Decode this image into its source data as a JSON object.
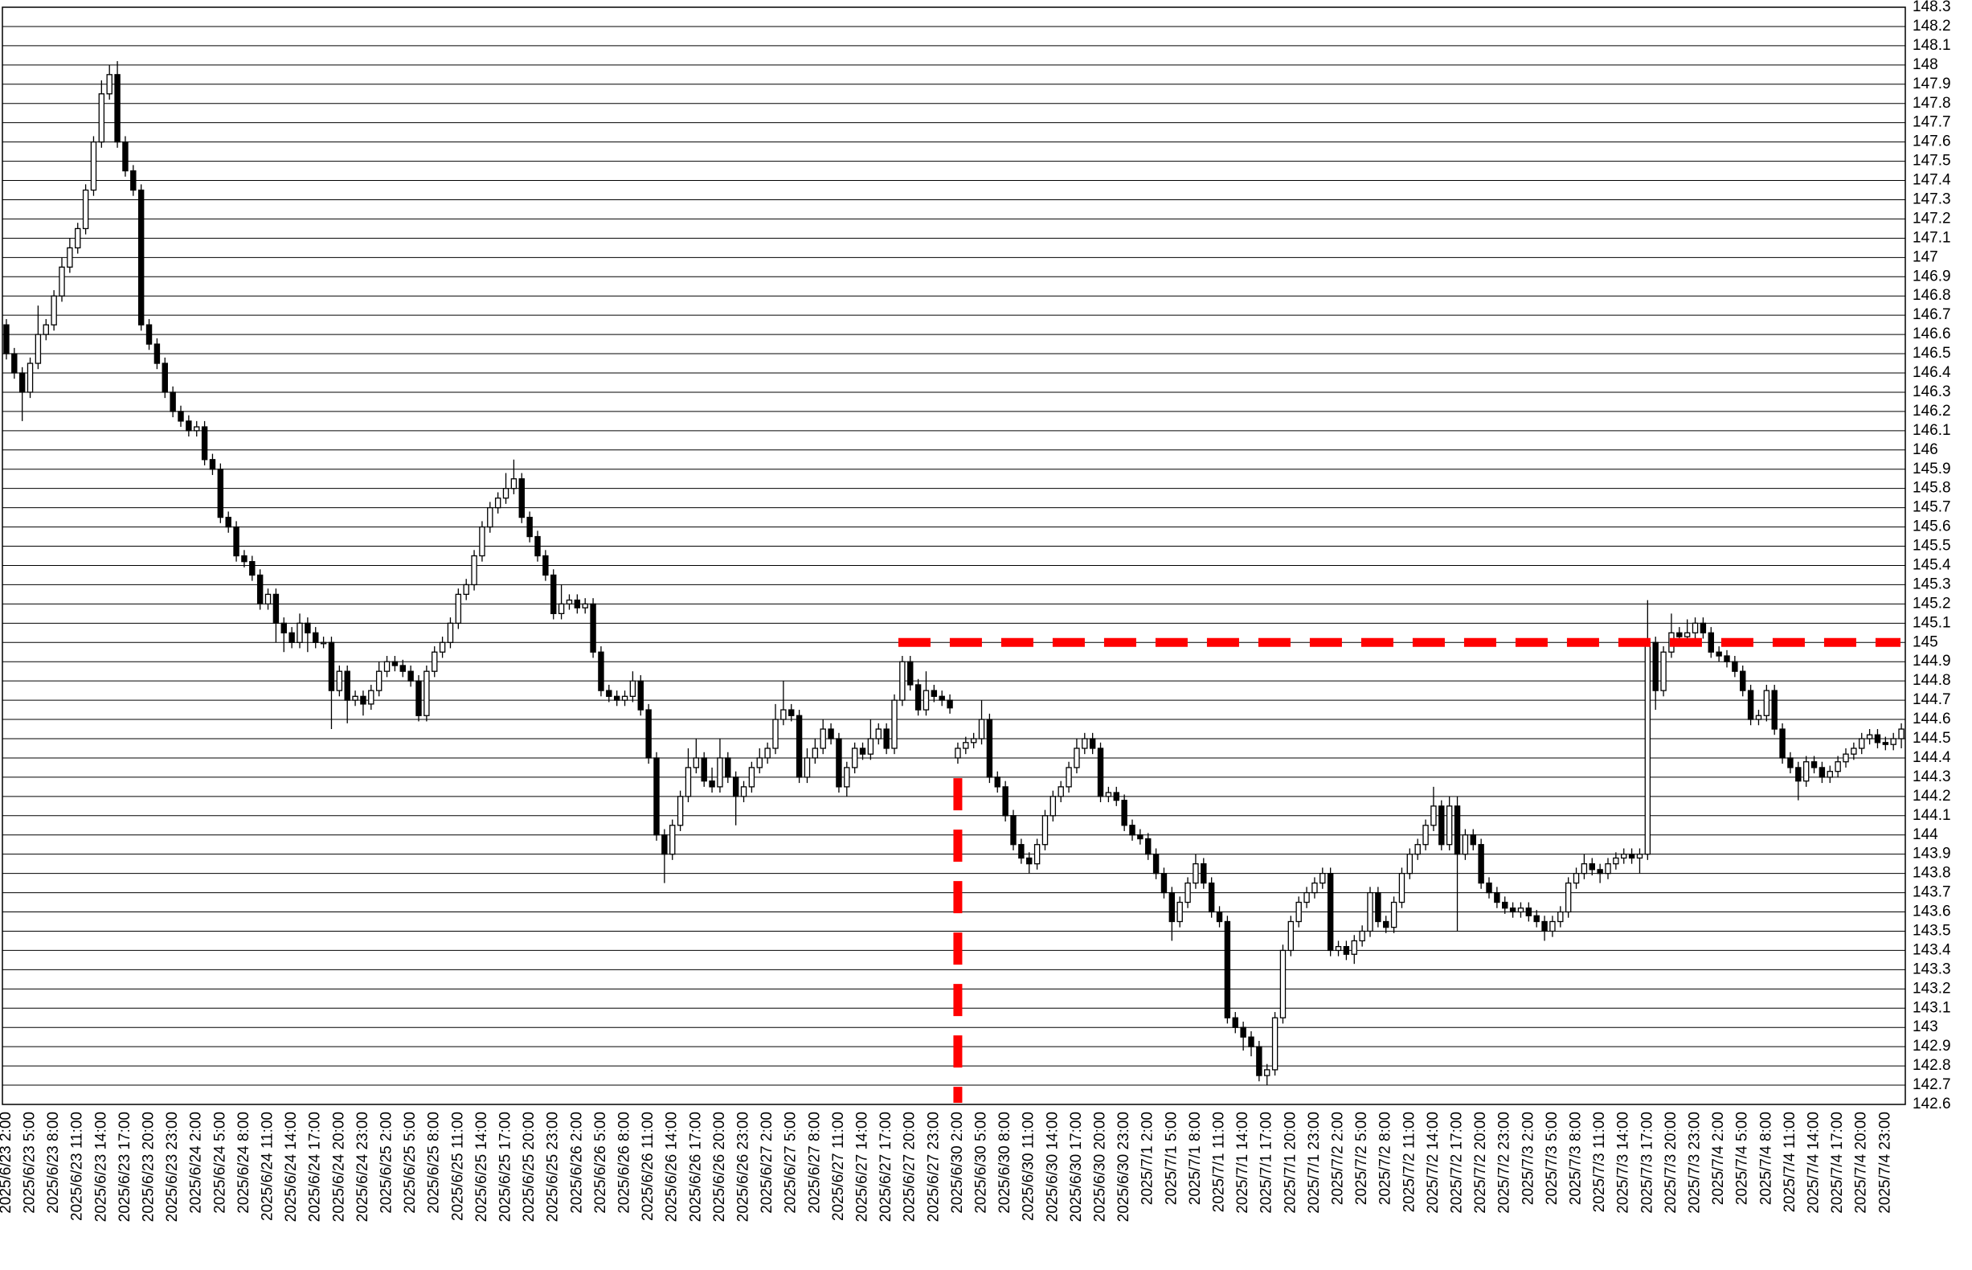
{
  "chart_data": {
    "type": "candlestick",
    "up_color": "#ffffff",
    "down_color": "#000000",
    "edge_color": "#000000",
    "grid": true,
    "ylim": [
      142.6,
      148.3
    ],
    "yticks": [
      142.6,
      142.7,
      142.8,
      142.9,
      143,
      143.1,
      143.2,
      143.3,
      143.4,
      143.5,
      143.6,
      143.7,
      143.8,
      143.9,
      144,
      144.1,
      144.2,
      144.3,
      144.4,
      144.5,
      144.6,
      144.7,
      144.8,
      144.9,
      145,
      145.1,
      145.2,
      145.3,
      145.4,
      145.5,
      145.6,
      145.7,
      145.8,
      145.9,
      146,
      146.1,
      146.2,
      146.3,
      146.4,
      146.5,
      146.6,
      146.7,
      146.8,
      146.9,
      147,
      147.1,
      147.2,
      147.3,
      147.4,
      147.5,
      147.6,
      147.7,
      147.8,
      147.9,
      148,
      148.1,
      148.2,
      148.3
    ],
    "categories": [
      "2025/6/23 2:00",
      null,
      null,
      "2025/6/23 5:00",
      null,
      null,
      "2025/6/23 8:00",
      null,
      null,
      "2025/6/23 11:00",
      null,
      null,
      "2025/6/23 14:00",
      null,
      null,
      "2025/6/23 17:00",
      null,
      null,
      "2025/6/23 20:00",
      null,
      null,
      "2025/6/23 23:00",
      null,
      null,
      "2025/6/24 2:00",
      null,
      null,
      "2025/6/24 5:00",
      null,
      null,
      "2025/6/24 8:00",
      null,
      null,
      "2025/6/24 11:00",
      null,
      null,
      "2025/6/24 14:00",
      null,
      null,
      "2025/6/24 17:00",
      null,
      null,
      "2025/6/24 20:00",
      null,
      null,
      "2025/6/24 23:00",
      null,
      null,
      "2025/6/25 2:00",
      null,
      null,
      "2025/6/25 5:00",
      null,
      null,
      "2025/6/25 8:00",
      null,
      null,
      "2025/6/25 11:00",
      null,
      null,
      "2025/6/25 14:00",
      null,
      null,
      "2025/6/25 17:00",
      null,
      null,
      "2025/6/25 20:00",
      null,
      null,
      "2025/6/25 23:00",
      null,
      null,
      "2025/6/26 2:00",
      null,
      null,
      "2025/6/26 5:00",
      null,
      null,
      "2025/6/26 8:00",
      null,
      null,
      "2025/6/26 11:00",
      null,
      null,
      "2025/6/26 14:00",
      null,
      null,
      "2025/6/26 17:00",
      null,
      null,
      "2025/6/26 20:00",
      null,
      null,
      "2025/6/26 23:00",
      null,
      null,
      "2025/6/27 2:00",
      null,
      null,
      "2025/6/27 5:00",
      null,
      null,
      "2025/6/27 8:00",
      null,
      null,
      "2025/6/27 11:00",
      null,
      null,
      "2025/6/27 14:00",
      null,
      null,
      "2025/6/27 17:00",
      null,
      null,
      "2025/6/27 20:00",
      null,
      null,
      "2025/6/27 23:00",
      null,
      null,
      "2025/6/30 2:00",
      null,
      null,
      "2025/6/30 5:00",
      null,
      null,
      "2025/6/30 8:00",
      null,
      null,
      "2025/6/30 11:00",
      null,
      null,
      "2025/6/30 14:00",
      null,
      null,
      "2025/6/30 17:00",
      null,
      null,
      "2025/6/30 20:00",
      null,
      null,
      "2025/6/30 23:00",
      null,
      null,
      "2025/7/1 2:00",
      null,
      null,
      "2025/7/1 5:00",
      null,
      null,
      "2025/7/1 8:00",
      null,
      null,
      "2025/7/1 11:00",
      null,
      null,
      "2025/7/1 14:00",
      null,
      null,
      "2025/7/1 17:00",
      null,
      null,
      "2025/7/1 20:00",
      null,
      null,
      "2025/7/1 23:00",
      null,
      null,
      "2025/7/2 2:00",
      null,
      null,
      "2025/7/2 5:00",
      null,
      null,
      "2025/7/2 8:00",
      null,
      null,
      "2025/7/2 11:00",
      null,
      null,
      "2025/7/2 14:00",
      null,
      null,
      "2025/7/2 17:00",
      null,
      null,
      "2025/7/2 20:00",
      null,
      null,
      "2025/7/2 23:00",
      null,
      null,
      "2025/7/3 2:00",
      null,
      null,
      "2025/7/3 5:00",
      null,
      null,
      "2025/7/3 8:00",
      null,
      null,
      "2025/7/3 11:00",
      null,
      null,
      "2025/7/3 14:00",
      null,
      null,
      "2025/7/3 17:00",
      null,
      null,
      "2025/7/3 20:00",
      null,
      null,
      "2025/7/3 23:00",
      null,
      null,
      "2025/7/4 2:00",
      null,
      null,
      "2025/7/4 5:00",
      null,
      null,
      "2025/7/4 8:00",
      null,
      null,
      "2025/7/4 11:00",
      null,
      null,
      "2025/7/4 14:00",
      null,
      null,
      "2025/7/4 17:00",
      null,
      null,
      "2025/7/4 20:00",
      null,
      null,
      "2025/7/4 23:00",
      null,
      null
    ],
    "open": [
      146.65,
      146.5,
      146.4,
      146.3,
      146.45,
      146.6,
      146.65,
      146.8,
      146.95,
      147.05,
      147.15,
      147.35,
      147.6,
      147.85,
      147.95,
      147.6,
      147.45,
      147.35,
      146.65,
      146.55,
      146.45,
      146.3,
      146.2,
      146.15,
      146.1,
      146.12,
      145.95,
      145.9,
      145.65,
      145.6,
      145.45,
      145.42,
      145.35,
      145.2,
      145.25,
      145.1,
      145.05,
      145,
      145.1,
      145.05,
      145,
      145,
      144.75,
      144.85,
      144.7,
      144.72,
      144.68,
      144.75,
      144.85,
      144.9,
      144.88,
      144.85,
      144.8,
      144.62,
      144.85,
      144.95,
      145,
      145.1,
      145.25,
      145.3,
      145.45,
      145.6,
      145.7,
      145.75,
      145.8,
      145.85,
      145.65,
      145.55,
      145.45,
      145.35,
      145.15,
      145.2,
      145.22,
      145.18,
      145.2,
      144.95,
      144.75,
      144.72,
      144.7,
      144.72,
      144.8,
      144.65,
      144.4,
      144,
      143.9,
      144.05,
      144.2,
      144.35,
      144.4,
      144.28,
      144.25,
      144.4,
      144.3,
      144.2,
      144.25,
      144.35,
      144.4,
      144.45,
      144.6,
      144.65,
      144.62,
      144.3,
      144.4,
      144.45,
      144.55,
      144.5,
      144.25,
      144.35,
      144.45,
      144.42,
      144.5,
      144.55,
      144.45,
      144.7,
      144.9,
      144.78,
      144.65,
      144.75,
      144.72,
      144.7,
      144.4,
      144.45,
      144.48,
      144.5,
      144.6,
      144.3,
      144.25,
      144.1,
      143.95,
      143.88,
      143.85,
      143.95,
      144.1,
      144.2,
      144.25,
      144.35,
      144.45,
      144.5,
      144.45,
      144.2,
      144.22,
      144.18,
      144.05,
      144,
      143.98,
      143.9,
      143.8,
      143.7,
      143.55,
      143.65,
      143.75,
      143.85,
      143.75,
      143.6,
      143.55,
      143.05,
      143,
      142.95,
      142.9,
      142.75,
      142.78,
      143.05,
      143.4,
      143.55,
      143.65,
      143.7,
      143.75,
      143.8,
      143.4,
      143.42,
      143.38,
      143.45,
      143.5,
      143.7,
      143.55,
      143.52,
      143.65,
      143.8,
      143.9,
      143.95,
      144.05,
      144.15,
      143.95,
      144.15,
      143.9,
      144,
      143.95,
      143.75,
      143.7,
      143.65,
      143.62,
      143.6,
      143.62,
      143.58,
      143.55,
      143.5,
      143.55,
      143.6,
      143.75,
      143.8,
      143.85,
      143.82,
      143.8,
      143.85,
      143.88,
      143.9,
      143.88,
      143.9,
      145,
      144.75,
      144.95,
      145.05,
      145.03,
      145.05,
      145.1,
      145.05,
      144.95,
      144.93,
      144.9,
      144.85,
      144.75,
      144.6,
      144.62,
      144.75,
      144.55,
      144.4,
      144.35,
      144.28,
      144.38,
      144.35,
      144.3,
      144.33,
      144.38,
      144.42,
      144.45,
      144.5,
      144.52,
      144.48,
      144.47,
      144.5
    ],
    "high": [
      146.68,
      146.53,
      146.43,
      146.48,
      146.75,
      146.68,
      146.83,
      147,
      147.1,
      147.18,
      147.38,
      147.63,
      147.92,
      148,
      148.02,
      147.63,
      147.48,
      147.38,
      146.68,
      146.58,
      146.48,
      146.33,
      146.23,
      146.18,
      146.15,
      146.15,
      145.98,
      145.93,
      145.68,
      145.63,
      145.48,
      145.45,
      145.38,
      145.28,
      145.28,
      145.13,
      145.08,
      145.15,
      145.13,
      145.08,
      145.03,
      145.03,
      144.88,
      144.88,
      144.75,
      144.75,
      144.78,
      144.9,
      144.93,
      144.93,
      144.91,
      144.88,
      144.83,
      144.88,
      144.98,
      145.03,
      145.13,
      145.28,
      145.33,
      145.48,
      145.63,
      145.73,
      145.78,
      145.88,
      145.95,
      145.88,
      145.68,
      145.58,
      145.48,
      145.38,
      145.3,
      145.25,
      145.25,
      145.23,
      145.23,
      144.98,
      144.78,
      144.75,
      144.75,
      144.85,
      144.83,
      144.68,
      144.43,
      144.03,
      144.08,
      144.23,
      144.45,
      144.5,
      144.43,
      144.35,
      144.5,
      144.43,
      144.33,
      144.28,
      144.38,
      144.45,
      144.48,
      144.68,
      144.8,
      144.68,
      144.65,
      144.45,
      144.5,
      144.6,
      144.58,
      144.53,
      144.38,
      144.48,
      144.48,
      144.6,
      144.58,
      144.58,
      144.73,
      144.93,
      144.93,
      144.81,
      144.85,
      144.78,
      144.75,
      144.73,
      144.48,
      144.51,
      144.53,
      144.7,
      144.63,
      144.33,
      144.28,
      144.13,
      143.98,
      143.91,
      143.98,
      144.13,
      144.23,
      144.28,
      144.38,
      144.5,
      144.53,
      144.53,
      144.48,
      144.25,
      144.25,
      144.21,
      144.08,
      144.03,
      144.01,
      143.93,
      143.83,
      143.73,
      143.68,
      143.78,
      143.9,
      143.88,
      143.78,
      143.63,
      143.58,
      143.08,
      143.03,
      142.98,
      142.93,
      142.81,
      143.08,
      143.43,
      143.58,
      143.68,
      143.73,
      143.78,
      143.83,
      143.83,
      143.45,
      143.45,
      143.48,
      143.53,
      143.73,
      143.73,
      143.58,
      143.68,
      143.83,
      143.93,
      143.98,
      144.08,
      144.25,
      144.18,
      144.2,
      144.2,
      144.03,
      144.03,
      143.98,
      143.78,
      143.73,
      143.68,
      143.65,
      143.65,
      143.65,
      143.61,
      143.58,
      143.58,
      143.63,
      143.78,
      143.83,
      143.9,
      143.88,
      143.85,
      143.88,
      143.91,
      143.93,
      143.93,
      143.93,
      145.22,
      145.03,
      144.98,
      145.15,
      145.08,
      145.12,
      145.13,
      145.13,
      145.08,
      144.98,
      144.96,
      144.93,
      144.88,
      144.78,
      144.65,
      144.78,
      144.78,
      144.58,
      144.43,
      144.38,
      144.41,
      144.41,
      144.38,
      144.36,
      144.41,
      144.45,
      144.48,
      144.53,
      144.55,
      144.55,
      144.51,
      144.53,
      144.58
    ],
    "low": [
      146.47,
      146.37,
      146.15,
      146.27,
      146.42,
      146.57,
      146.62,
      146.77,
      146.92,
      147.02,
      147.12,
      147.32,
      147.57,
      147.82,
      147.57,
      147.42,
      147.32,
      146.62,
      146.52,
      146.42,
      146.27,
      146.17,
      146.12,
      146.07,
      146.07,
      145.92,
      145.87,
      145.62,
      145.57,
      145.42,
      145.39,
      145.32,
      145.17,
      145.17,
      145,
      144.95,
      144.97,
      144.97,
      144.95,
      144.97,
      144.97,
      144.55,
      144.72,
      144.58,
      144.67,
      144.62,
      144.65,
      144.72,
      144.82,
      144.85,
      144.82,
      144.77,
      144.59,
      144.59,
      144.82,
      144.92,
      144.97,
      145.07,
      145.22,
      145.27,
      145.42,
      145.57,
      145.67,
      145.72,
      145.77,
      145.62,
      145.52,
      145.42,
      145.32,
      145.12,
      145.12,
      145.17,
      145.15,
      145.15,
      144.92,
      144.72,
      144.69,
      144.67,
      144.67,
      144.69,
      144.62,
      144.37,
      143.97,
      143.75,
      143.87,
      144.02,
      144.17,
      144.32,
      144.25,
      144.22,
      144.22,
      144.27,
      144.05,
      144.17,
      144.22,
      144.32,
      144.37,
      144.42,
      144.57,
      144.59,
      144.27,
      144.27,
      144.37,
      144.42,
      144.47,
      144.22,
      144.2,
      144.32,
      144.39,
      144.39,
      144.47,
      144.42,
      144.42,
      144.67,
      144.75,
      144.62,
      144.62,
      144.69,
      144.67,
      144.63,
      144.37,
      144.42,
      144.45,
      144.47,
      144.27,
      144.22,
      144.07,
      143.92,
      143.85,
      143.8,
      143.82,
      143.92,
      144.07,
      144.17,
      144.22,
      144.32,
      144.42,
      144.42,
      144.17,
      144.17,
      144.15,
      144.02,
      143.97,
      143.95,
      143.87,
      143.77,
      143.67,
      143.45,
      143.52,
      143.62,
      143.72,
      143.72,
      143.57,
      143.52,
      143.02,
      142.97,
      142.88,
      142.85,
      142.72,
      142.7,
      142.75,
      143.02,
      143.37,
      143.52,
      143.62,
      143.67,
      143.72,
      143.37,
      143.37,
      143.35,
      143.33,
      143.42,
      143.47,
      143.52,
      143.49,
      143.49,
      143.62,
      143.77,
      143.87,
      143.92,
      144.02,
      143.92,
      143.92,
      143.5,
      143.87,
      143.92,
      143.72,
      143.67,
      143.62,
      143.59,
      143.57,
      143.57,
      143.55,
      143.52,
      143.45,
      143.47,
      143.52,
      143.57,
      143.72,
      143.77,
      143.79,
      143.75,
      143.77,
      143.82,
      143.85,
      143.85,
      143.8,
      143.87,
      144.65,
      144.72,
      144.92,
      145,
      145,
      145.02,
      145.02,
      144.92,
      144.9,
      144.87,
      144.82,
      144.72,
      144.57,
      144.57,
      144.59,
      144.52,
      144.37,
      144.32,
      144.18,
      144.25,
      144.32,
      144.27,
      144.27,
      144.3,
      144.35,
      144.39,
      144.42,
      144.47,
      144.45,
      144.44,
      144.44,
      144.45
    ],
    "close": [
      146.5,
      146.4,
      146.3,
      146.45,
      146.6,
      146.65,
      146.8,
      146.95,
      147.05,
      147.15,
      147.35,
      147.6,
      147.85,
      147.95,
      147.6,
      147.45,
      147.35,
      146.65,
      146.55,
      146.45,
      146.3,
      146.2,
      146.15,
      146.1,
      146.12,
      145.95,
      145.9,
      145.65,
      145.6,
      145.45,
      145.42,
      145.35,
      145.2,
      145.25,
      145.1,
      145.05,
      145,
      145.1,
      145.05,
      145,
      145,
      144.75,
      144.85,
      144.7,
      144.72,
      144.68,
      144.75,
      144.85,
      144.9,
      144.88,
      144.85,
      144.8,
      144.62,
      144.85,
      144.95,
      145,
      145.1,
      145.25,
      145.3,
      145.45,
      145.6,
      145.7,
      145.75,
      145.8,
      145.85,
      145.65,
      145.55,
      145.45,
      145.35,
      145.15,
      145.2,
      145.22,
      145.18,
      145.2,
      144.95,
      144.75,
      144.72,
      144.7,
      144.72,
      144.8,
      144.65,
      144.4,
      144,
      143.9,
      144.05,
      144.2,
      144.35,
      144.4,
      144.28,
      144.25,
      144.4,
      144.3,
      144.2,
      144.25,
      144.35,
      144.4,
      144.45,
      144.6,
      144.65,
      144.62,
      144.3,
      144.4,
      144.45,
      144.55,
      144.5,
      144.25,
      144.35,
      144.45,
      144.42,
      144.5,
      144.55,
      144.45,
      144.7,
      144.9,
      144.78,
      144.65,
      144.75,
      144.72,
      144.7,
      144.66,
      144.45,
      144.48,
      144.5,
      144.6,
      144.3,
      144.25,
      144.1,
      143.95,
      143.88,
      143.85,
      143.95,
      144.1,
      144.2,
      144.25,
      144.35,
      144.45,
      144.5,
      144.45,
      144.2,
      144.22,
      144.18,
      144.05,
      144,
      143.98,
      143.9,
      143.8,
      143.7,
      143.55,
      143.65,
      143.75,
      143.85,
      143.75,
      143.6,
      143.55,
      143.05,
      143,
      142.95,
      142.9,
      142.75,
      142.78,
      143.05,
      143.4,
      143.55,
      143.65,
      143.7,
      143.75,
      143.8,
      143.4,
      143.42,
      143.38,
      143.45,
      143.5,
      143.7,
      143.55,
      143.52,
      143.65,
      143.8,
      143.9,
      143.95,
      144.05,
      144.15,
      143.95,
      144.15,
      143.9,
      144,
      143.95,
      143.75,
      143.7,
      143.65,
      143.62,
      143.6,
      143.62,
      143.58,
      143.55,
      143.5,
      143.55,
      143.6,
      143.75,
      143.8,
      143.85,
      143.82,
      143.8,
      143.85,
      143.88,
      143.9,
      143.88,
      143.9,
      145,
      144.75,
      144.95,
      145.05,
      145.03,
      145.05,
      145.1,
      145.05,
      144.95,
      144.93,
      144.9,
      144.85,
      144.75,
      144.6,
      144.62,
      144.75,
      144.55,
      144.4,
      144.35,
      144.28,
      144.38,
      144.35,
      144.3,
      144.33,
      144.38,
      144.42,
      144.45,
      144.5,
      144.52,
      144.48,
      144.47,
      144.5,
      144.55
    ],
    "reference_lines": [
      {
        "axis": "y",
        "value": 145,
        "from": 113,
        "color": "#ff0000"
      },
      {
        "axis": "x",
        "value": 120,
        "color": "#ff0000"
      }
    ]
  }
}
